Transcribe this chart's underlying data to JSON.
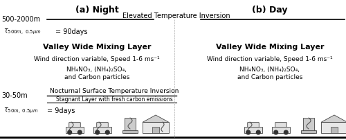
{
  "title_a": "(a) Night",
  "title_b": "(b) Day",
  "elevated_label": "Elevated Temperature Inversion",
  "top_height_label": "500-2000m",
  "mixing_layer_title": "Valley Wide Mixing Layer",
  "wind_label": "Wind direction variable, Speed 1-6 ms⁻¹",
  "chem_line1": "NH₄NO₃, (NH₄)₂SO₄,",
  "chem_line2": "and Carbon particles",
  "bottom_height_label": "30-50m",
  "nocturnal_label": "Nocturnal Surface Temperature Inversion",
  "stagnant_label": "Stagnant Layer with fresh carbon emissions",
  "bg_color": "#ffffff",
  "text_color": "#000000",
  "line_color": "#000000",
  "fig_width": 5.0,
  "fig_height": 2.02,
  "dpi": 100
}
